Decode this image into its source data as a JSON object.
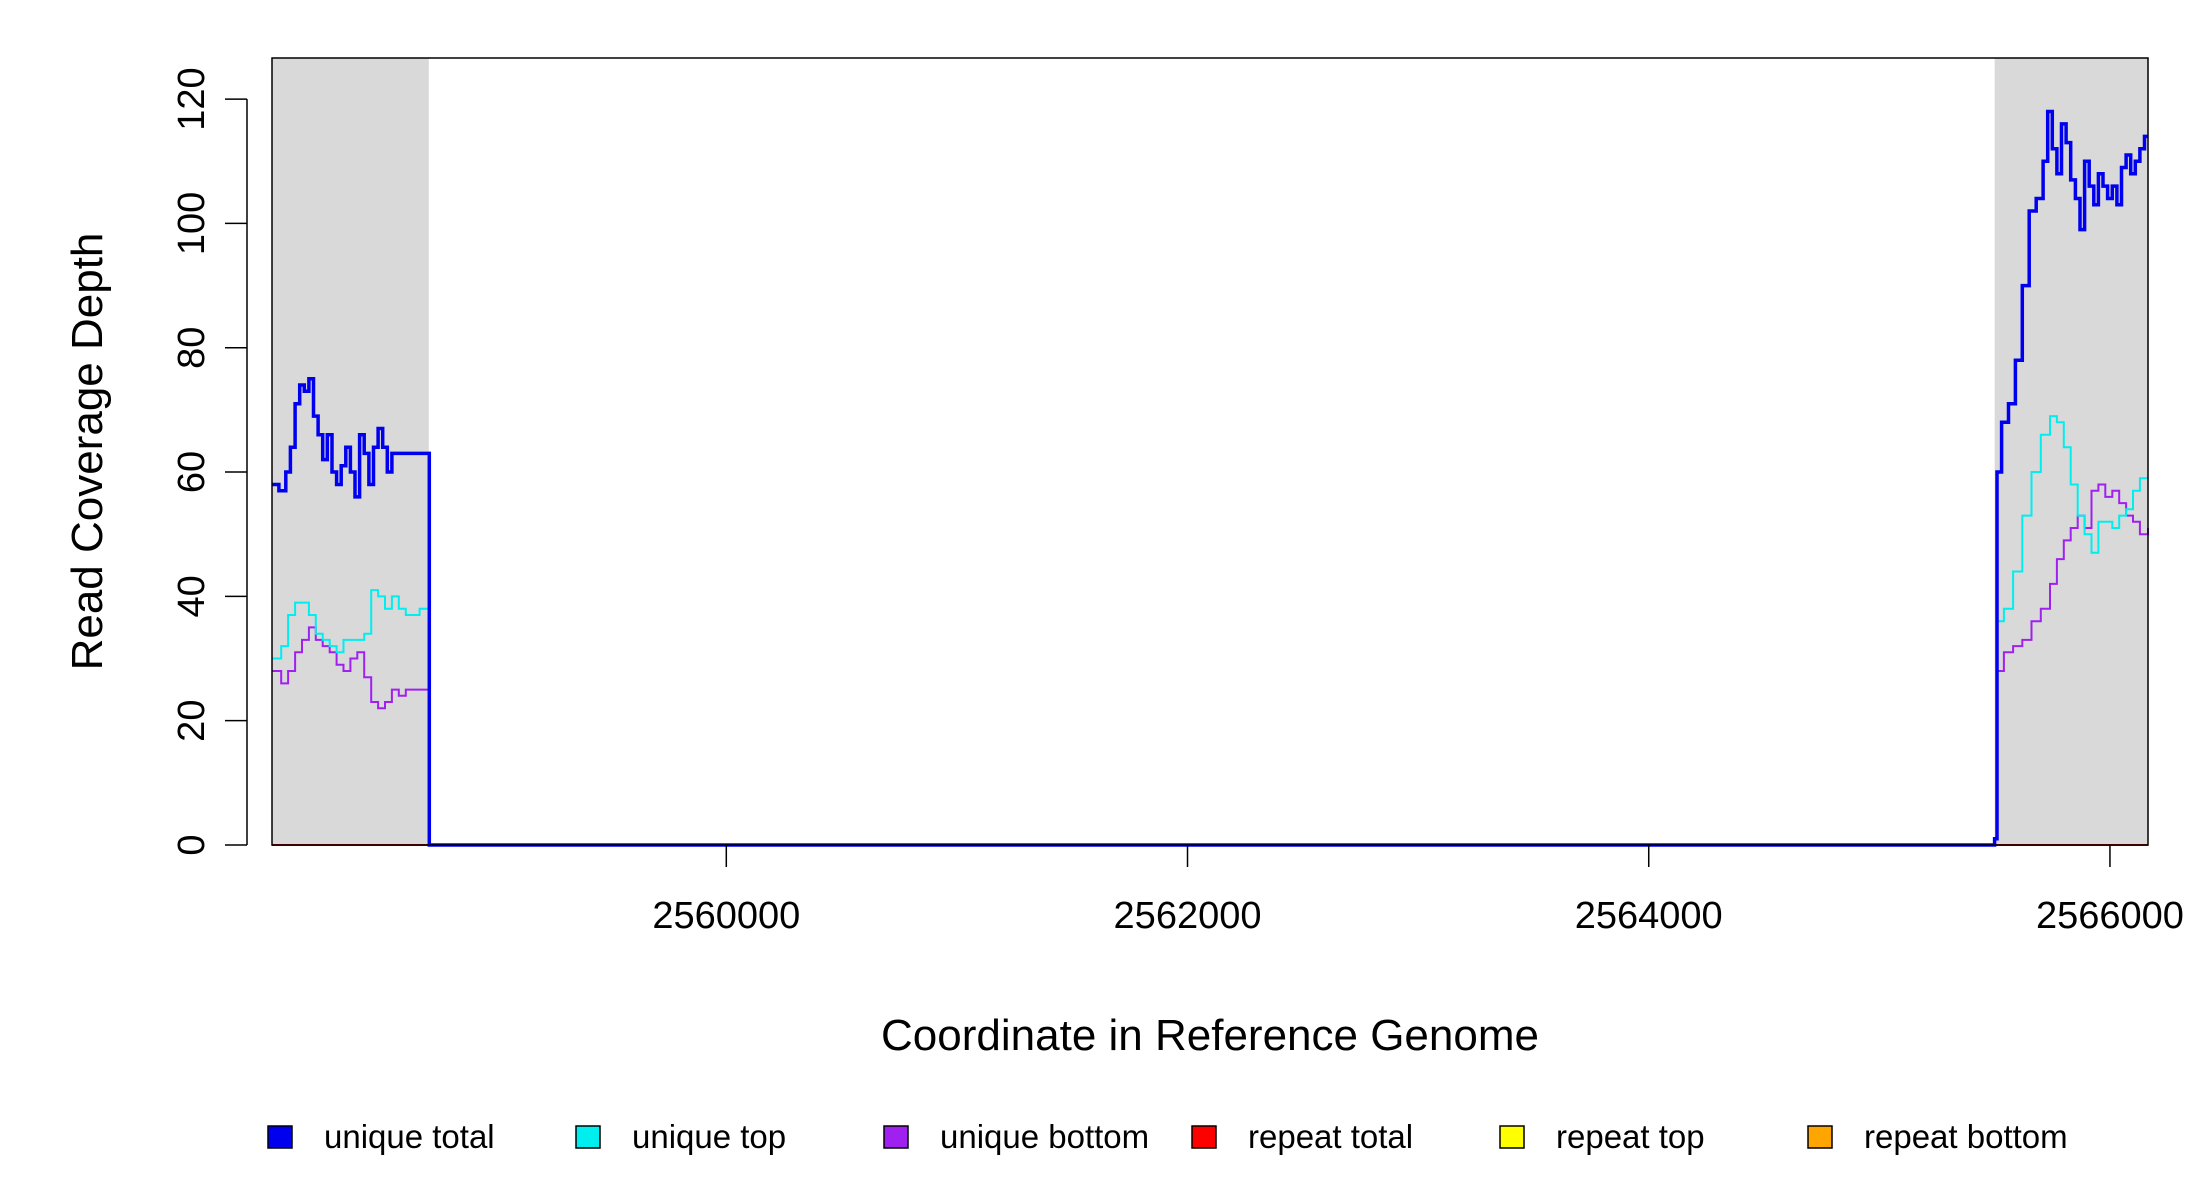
{
  "chart_data": {
    "type": "line",
    "title": "",
    "xlabel": "Coordinate in Reference Genome",
    "ylabel": "Read Coverage Depth",
    "xlim": [
      2558030,
      2566165
    ],
    "ylim": [
      0,
      125
    ],
    "x_ticks": [
      2560000,
      2562000,
      2564000,
      2566000
    ],
    "x_tick_labels": [
      "2560000",
      "2562000",
      "2564000",
      "2566000"
    ],
    "y_ticks": [
      0,
      20,
      40,
      60,
      80,
      100,
      120
    ],
    "y_tick_labels": [
      "0",
      "20",
      "40",
      "60",
      "80",
      "100",
      "120"
    ],
    "grid": false,
    "legend_position": "bottom",
    "shaded_regions": [
      {
        "x0": 2558030,
        "x1": 2558710,
        "color": "#d9d9d9"
      },
      {
        "x0": 2565500,
        "x1": 2566165,
        "color": "#d9d9d9"
      }
    ],
    "series": [
      {
        "name": "unique total",
        "color": "#0000ee",
        "step": true,
        "x": [
          2558030,
          2558060,
          2558090,
          2558110,
          2558130,
          2558150,
          2558170,
          2558190,
          2558210,
          2558230,
          2558250,
          2558270,
          2558290,
          2558310,
          2558330,
          2558350,
          2558370,
          2558390,
          2558410,
          2558430,
          2558450,
          2558470,
          2558490,
          2558510,
          2558530,
          2558550,
          2558570,
          2558590,
          2558610,
          2558630,
          2558650,
          2558670,
          2558690,
          2558708,
          2558712,
          2565480,
          2565500,
          2565510,
          2565530,
          2565560,
          2565590,
          2565620,
          2565650,
          2565680,
          2565710,
          2565730,
          2565750,
          2565770,
          2565790,
          2565810,
          2565830,
          2565850,
          2565870,
          2565890,
          2565910,
          2565930,
          2565950,
          2565970,
          2565990,
          2566010,
          2566030,
          2566050,
          2566070,
          2566090,
          2566110,
          2566130,
          2566150,
          2566165
        ],
        "values": [
          58,
          57,
          60,
          64,
          71,
          74,
          73,
          75,
          69,
          66,
          62,
          66,
          60,
          58,
          61,
          64,
          60,
          56,
          66,
          63,
          58,
          64,
          67,
          64,
          60,
          63,
          63,
          63,
          63,
          63,
          63,
          63,
          63,
          63,
          0,
          0,
          1,
          60,
          68,
          71,
          78,
          90,
          102,
          104,
          110,
          118,
          112,
          108,
          116,
          113,
          107,
          104,
          99,
          110,
          106,
          103,
          108,
          106,
          104,
          106,
          103,
          109,
          111,
          108,
          110,
          112,
          114,
          114
        ]
      },
      {
        "name": "unique top",
        "color": "#00eeee",
        "step": true,
        "x": [
          2558030,
          2558070,
          2558100,
          2558130,
          2558160,
          2558190,
          2558220,
          2558250,
          2558280,
          2558310,
          2558340,
          2558370,
          2558400,
          2558430,
          2558460,
          2558490,
          2558520,
          2558550,
          2558580,
          2558610,
          2558640,
          2558670,
          2558708,
          2558712,
          2565480,
          2565500,
          2565510,
          2565540,
          2565580,
          2565620,
          2565660,
          2565700,
          2565740,
          2565770,
          2565800,
          2565830,
          2565860,
          2565890,
          2565920,
          2565950,
          2565980,
          2566010,
          2566040,
          2566070,
          2566100,
          2566130,
          2566165
        ],
        "values": [
          30,
          32,
          37,
          39,
          39,
          37,
          34,
          33,
          32,
          31,
          33,
          33,
          33,
          34,
          41,
          40,
          38,
          40,
          38,
          37,
          37,
          38,
          38,
          0,
          0,
          1,
          36,
          38,
          44,
          53,
          60,
          66,
          69,
          68,
          64,
          58,
          53,
          50,
          47,
          52,
          52,
          51,
          53,
          54,
          57,
          59,
          59
        ]
      },
      {
        "name": "unique bottom",
        "color": "#a020f0",
        "step": true,
        "x": [
          2558030,
          2558070,
          2558100,
          2558130,
          2558160,
          2558190,
          2558220,
          2558250,
          2558280,
          2558310,
          2558340,
          2558370,
          2558400,
          2558430,
          2558460,
          2558490,
          2558520,
          2558550,
          2558580,
          2558610,
          2558640,
          2558670,
          2558708,
          2558712,
          2565480,
          2565500,
          2565510,
          2565540,
          2565580,
          2565620,
          2565660,
          2565700,
          2565740,
          2565770,
          2565800,
          2565830,
          2565860,
          2565890,
          2565920,
          2565950,
          2565980,
          2566010,
          2566040,
          2566070,
          2566100,
          2566130,
          2566165
        ],
        "values": [
          28,
          26,
          28,
          31,
          33,
          35,
          33,
          32,
          31,
          29,
          28,
          30,
          31,
          27,
          23,
          22,
          23,
          25,
          24,
          25,
          25,
          25,
          25,
          0,
          0,
          1,
          28,
          31,
          32,
          33,
          36,
          38,
          42,
          46,
          49,
          51,
          53,
          51,
          57,
          58,
          56,
          57,
          55,
          53,
          52,
          50,
          51
        ]
      },
      {
        "name": "repeat total",
        "color": "#ff0000",
        "step": true,
        "x": [
          2558030,
          2566165
        ],
        "values": [
          0,
          0
        ]
      },
      {
        "name": "repeat top",
        "color": "#ffff00",
        "step": true,
        "x": [
          2558030,
          2566165
        ],
        "values": [
          0,
          0
        ]
      },
      {
        "name": "repeat bottom",
        "color": "#ffa500",
        "step": true,
        "x": [
          2558030,
          2566165
        ],
        "values": [
          0,
          0
        ]
      }
    ]
  }
}
